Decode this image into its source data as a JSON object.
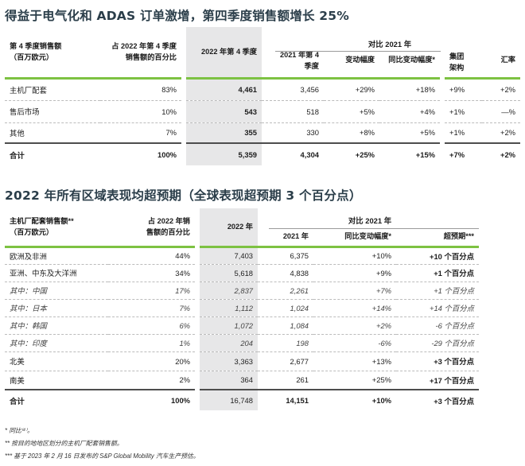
{
  "section1": {
    "title": "得益于电气化和 ADAS 订单激增，第四季度销售额增长 25%",
    "headers": {
      "c1": [
        "第 4 季度销售额",
        "（百万欧元）"
      ],
      "c2": [
        "占 2022 年第 4 季度",
        "销售额的百分比"
      ],
      "c3": "2022 年第 4 季度",
      "compare_title": "对比 2021 年",
      "c4": [
        "2021 年第 4",
        "季度"
      ],
      "c5": "变动幅度",
      "c6": "同比变动幅度*",
      "c7": [
        "集团",
        "架构"
      ],
      "c8": "汇率"
    },
    "rows": [
      {
        "label": "主机厂配套",
        "pct": "83%",
        "q4_2022": "4,461",
        "q4_2021": "3,456",
        "change": "+29%",
        "yoy": "+18%",
        "group": "+9%",
        "fx": "+2%"
      },
      {
        "label": "售后市场",
        "pct": "10%",
        "q4_2022": "543",
        "q4_2021": "518",
        "change": "+5%",
        "yoy": "+4%",
        "group": "+1%",
        "fx": "—%"
      },
      {
        "label": "其他",
        "pct": "7%",
        "q4_2022": "355",
        "q4_2021": "330",
        "change": "+8%",
        "yoy": "+5%",
        "group": "+1%",
        "fx": "+2%"
      }
    ],
    "total": {
      "label": "合计",
      "pct": "100%",
      "q4_2022": "5,359",
      "q4_2021": "4,304",
      "change": "+25%",
      "yoy": "+15%",
      "group": "+7%",
      "fx": "+2%"
    }
  },
  "section2": {
    "title": "2022 年所有区域表现均超预期（全球表现超预期 3 个百分点）",
    "headers": {
      "c1": [
        "主机厂配套销售额**",
        "（百万欧元）"
      ],
      "c2": [
        "占 2022 年销",
        "售额的百分比"
      ],
      "c3": "2022 年",
      "compare_title": "对比 2021 年",
      "c4": "2021 年",
      "c5": "同比变动幅度*",
      "c6": "超预期***"
    },
    "rows": [
      {
        "label": "欧洲及非洲",
        "pct": "44%",
        "y2022": "7,403",
        "y2021": "6,375",
        "yoy": "+10%",
        "outperf": "+10 个百分点",
        "style": "main"
      },
      {
        "label": "亚洲、中东及大洋洲",
        "pct": "34%",
        "y2022": "5,618",
        "y2021": "4,838",
        "yoy": "+9%",
        "outperf": "+1 个百分点",
        "style": "main"
      },
      {
        "label": "其中：中国",
        "pct": "17%",
        "y2022": "2,837",
        "y2021": "2,261",
        "yoy": "+7%",
        "outperf": "+1 个百分点",
        "style": "sub"
      },
      {
        "label": "其中：日本",
        "pct": "7%",
        "y2022": "1,112",
        "y2021": "1,024",
        "yoy": "+14%",
        "outperf": "+14 个百分点",
        "style": "sub"
      },
      {
        "label": "其中：韩国",
        "pct": "6%",
        "y2022": "1,072",
        "y2021": "1,084",
        "yoy": "+2%",
        "outperf": "-6 个百分点",
        "style": "sub"
      },
      {
        "label": "其中：印度",
        "pct": "1%",
        "y2022": "204",
        "y2021": "198",
        "yoy": "-6%",
        "outperf": "-29 个百分点",
        "style": "sub"
      },
      {
        "label": "北美",
        "pct": "20%",
        "y2022": "3,363",
        "y2021": "2,677",
        "yoy": "+13%",
        "outperf": "+3 个百分点",
        "style": "main"
      },
      {
        "label": "南美",
        "pct": "2%",
        "y2022": "364",
        "y2021": "261",
        "yoy": "+25%",
        "outperf": "+17 个百分点",
        "style": "main"
      }
    ],
    "total": {
      "label": "合计",
      "pct": "100%",
      "y2022": "16,748",
      "y2021": "14,151",
      "yoy": "+10%",
      "outperf": "+3 个百分点"
    }
  },
  "footnotes": [
    "* 同比⁽⁴⁾。",
    "** 按目的地地区划分的主机厂配套销售额。",
    "*** 基于 2023 年 2 月 16 日发布的 S&P Global Mobility 汽车生产预估。"
  ],
  "colors": {
    "accent_green": "#7dc242",
    "highlight_gray": "#e7e7e8",
    "title": "#2b3e4a"
  }
}
